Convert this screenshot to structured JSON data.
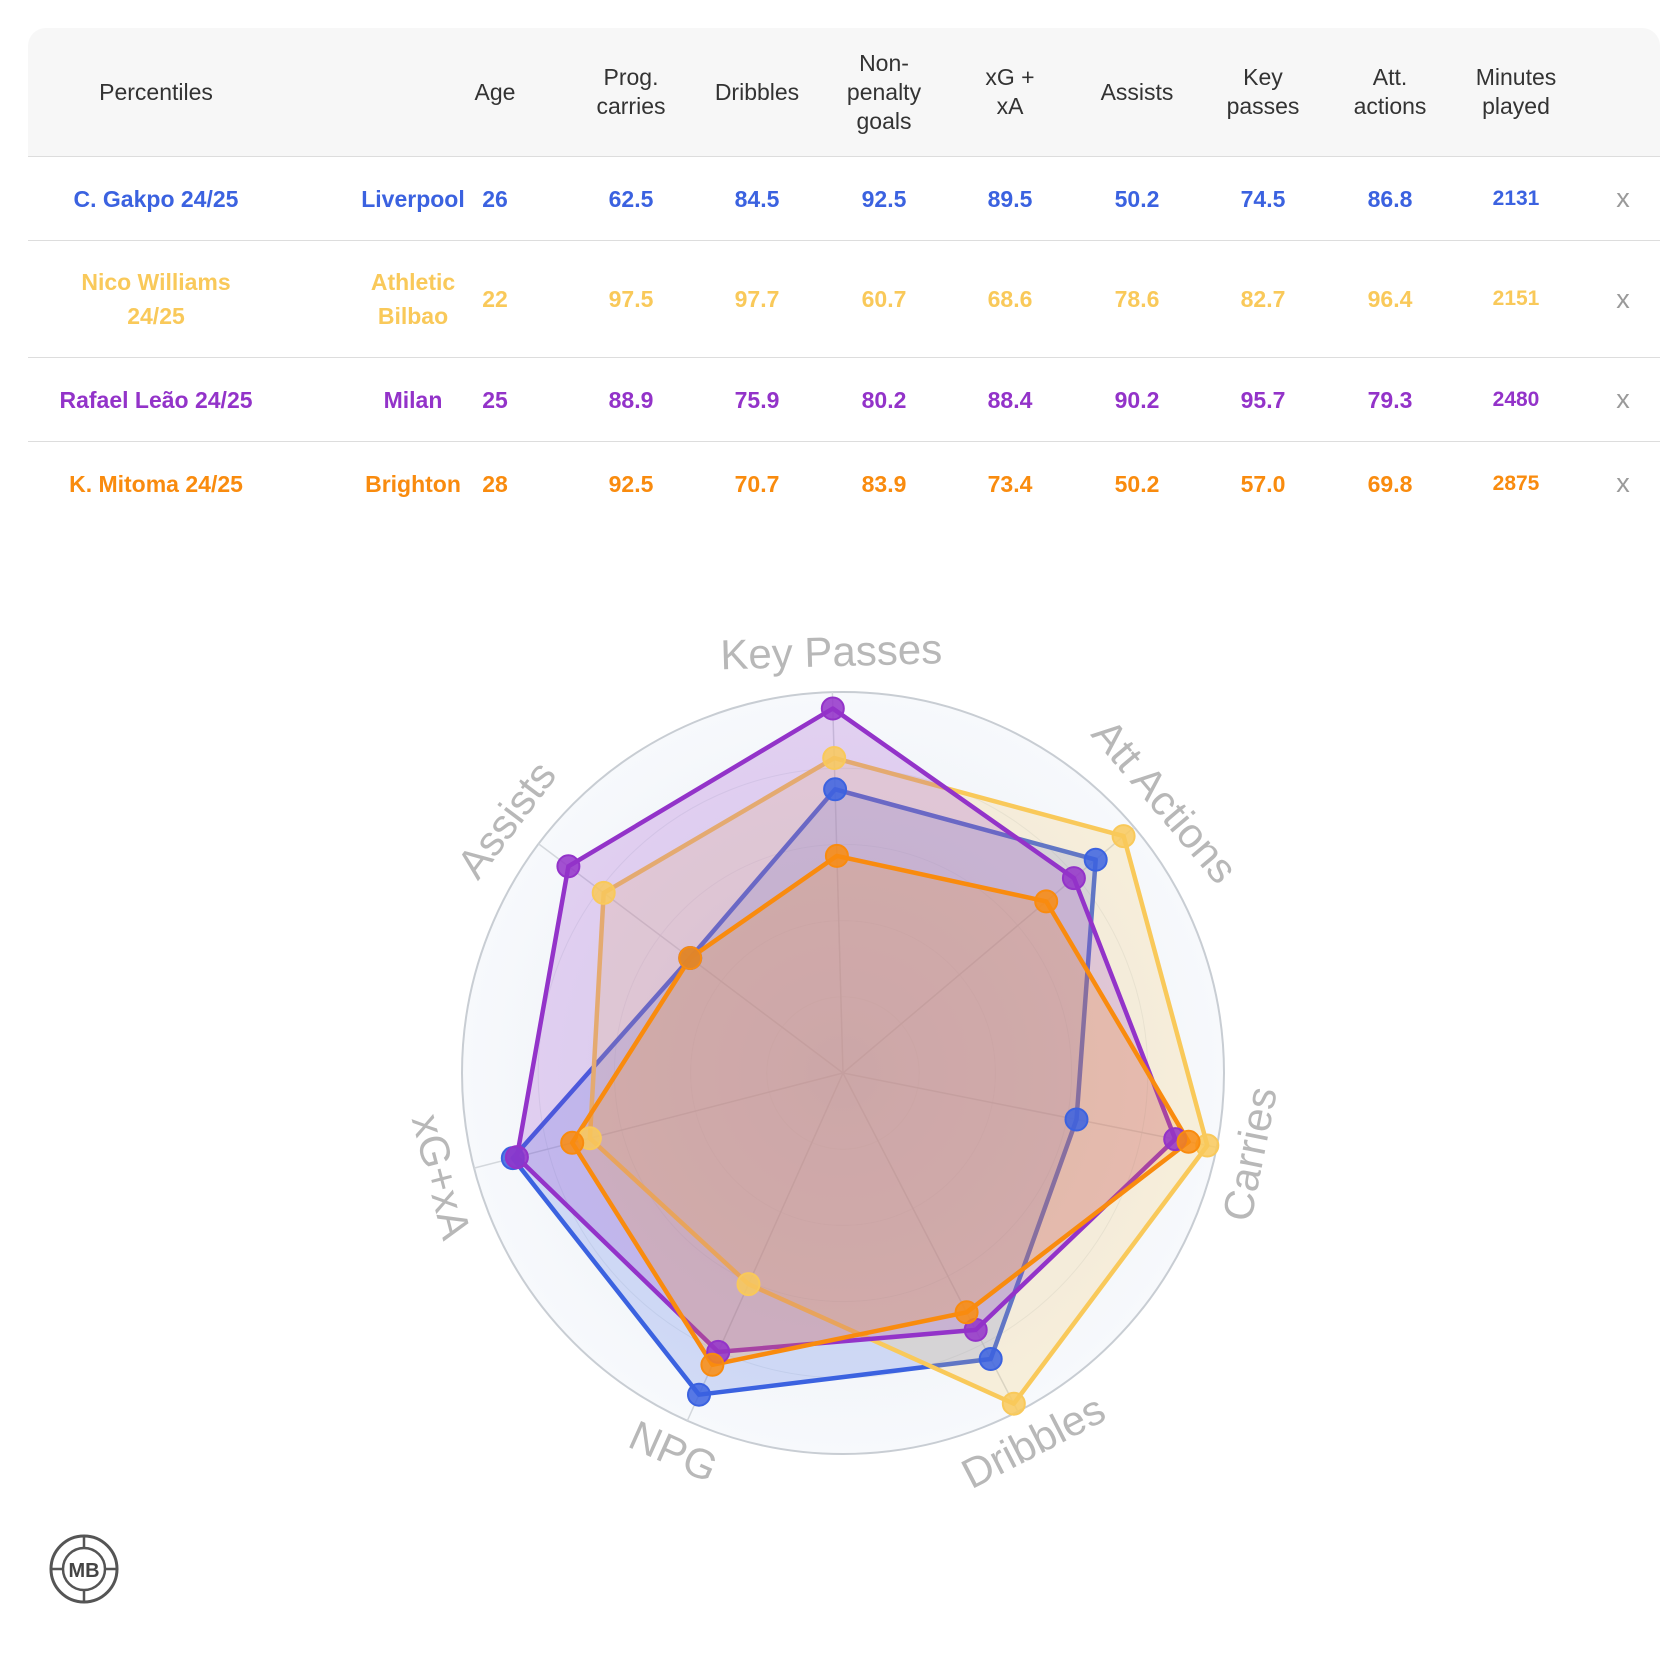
{
  "table": {
    "headers": {
      "percentiles": "Percentiles",
      "age": "Age",
      "prog_carries": [
        "Prog.",
        "carries"
      ],
      "dribbles": "Dribbles",
      "npg": [
        "Non-",
        "penalty",
        "goals"
      ],
      "xgxa": [
        "xG +",
        "xA"
      ],
      "assists": "Assists",
      "key_passes": [
        "Key",
        "passes"
      ],
      "att_actions": [
        "Att.",
        "actions"
      ],
      "minutes": [
        "Minutes",
        "played"
      ]
    },
    "remove_label": "x",
    "rows": [
      {
        "player": "C. Gakpo 24/25",
        "club": "Liverpool",
        "age": "26",
        "prog_carries": "62.5",
        "dribbles": "84.5",
        "npg": "92.5",
        "xgxa": "89.5",
        "assists": "50.2",
        "key_passes": "74.5",
        "att_actions": "86.8",
        "minutes": "2131",
        "color": "#3b62e0"
      },
      {
        "player": "Nico Williams 24/25",
        "club": "Athletic Bilbao",
        "age": "22",
        "prog_carries": "97.5",
        "dribbles": "97.7",
        "npg": "60.7",
        "xgxa": "68.6",
        "assists": "78.6",
        "key_passes": "82.7",
        "att_actions": "96.4",
        "minutes": "2151",
        "color": "#f9c95a"
      },
      {
        "player": "Rafael Leão 24/25",
        "club": "Milan",
        "age": "25",
        "prog_carries": "88.9",
        "dribbles": "75.9",
        "npg": "80.2",
        "xgxa": "88.4",
        "assists": "90.2",
        "key_passes": "95.7",
        "att_actions": "79.3",
        "minutes": "2480",
        "color": "#9333c9"
      },
      {
        "player": "K. Mitoma 24/25",
        "club": "Brighton",
        "age": "28",
        "prog_carries": "92.5",
        "dribbles": "70.7",
        "npg": "83.9",
        "xgxa": "73.4",
        "assists": "50.2",
        "key_passes": "57.0",
        "att_actions": "69.8",
        "minutes": "2875",
        "color": "#f98b0e"
      }
    ]
  },
  "chart_data": {
    "type": "radar",
    "axes": [
      "Key Passes",
      "Att Actions",
      "Carries",
      "Dribbles",
      "NPG",
      "xG+xA",
      "Assists"
    ],
    "range": [
      0,
      100
    ],
    "series": [
      {
        "name": "C. Gakpo 24/25",
        "color": "#3b62e0",
        "values": [
          74.5,
          86.8,
          62.5,
          84.5,
          92.5,
          89.5,
          50.2
        ]
      },
      {
        "name": "Nico Williams 24/25",
        "color": "#f9c95a",
        "values": [
          82.7,
          96.4,
          97.5,
          97.7,
          60.7,
          68.6,
          78.6
        ]
      },
      {
        "name": "Rafael Leão 24/25",
        "color": "#9333c9",
        "values": [
          95.7,
          79.3,
          88.9,
          75.9,
          80.2,
          88.4,
          90.2
        ]
      },
      {
        "name": "K. Mitoma 24/25",
        "color": "#f98b0e",
        "values": [
          57.0,
          69.8,
          92.5,
          70.7,
          83.9,
          73.4,
          50.2
        ]
      }
    ]
  },
  "logo": {
    "text": "MB"
  }
}
